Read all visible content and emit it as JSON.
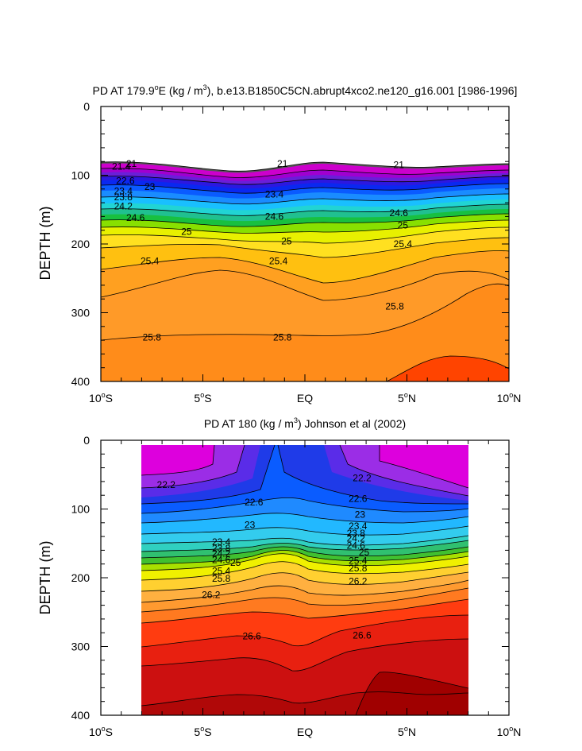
{
  "chart_data": [
    {
      "type": "heatmap",
      "subtype": "filled-contour",
      "title": "PD AT 179.9°E (kg / m³), b.e13.B1850C5CN.abrupt4xco2.ne120_g16.001 [1986-1996]",
      "title_parts": {
        "prefix": "PD AT 179.9",
        "deg": "o",
        "mid": "E (kg / m",
        "sup": "3",
        "suffix": "), b.e13.B1850C5CN.abrupt4xco2.ne120_g16.001 [1986-1996]"
      },
      "xlabel": "",
      "ylabel": "DEPTH (m)",
      "xlim": [
        -10,
        10
      ],
      "ylim": [
        400,
        0
      ],
      "x_ticks": [
        {
          "value": -10,
          "num": "10",
          "deg": "o",
          "hem": "S"
        },
        {
          "value": -5,
          "num": "5",
          "deg": "o",
          "hem": "S"
        },
        {
          "value": 0,
          "num": "EQ",
          "deg": "",
          "hem": ""
        },
        {
          "value": 5,
          "num": "5",
          "deg": "o",
          "hem": "N"
        },
        {
          "value": 10,
          "num": "10",
          "deg": "o",
          "hem": "N"
        }
      ],
      "y_ticks": [
        "0",
        "100",
        "200",
        "300",
        "400"
      ],
      "y_tick_values": [
        0,
        100,
        200,
        300,
        400
      ],
      "data_xrange": [
        -10,
        10
      ],
      "contour_interval": 0.2,
      "density_range": [
        20.4,
        26.6
      ],
      "fill_colors": [
        "#cc00cc",
        "#a000d0",
        "#6a1fd8",
        "#2c18e0",
        "#0a28f0",
        "#0a5bff",
        "#1a8cff",
        "#19bfff",
        "#21d4d4",
        "#20c090",
        "#18c040",
        "#88e000",
        "#e8f000",
        "#ffe020",
        "#ffc010",
        "#ffa020",
        "#ff8c1a",
        "#ff4400"
      ],
      "contour_labels": [
        {
          "text": "21",
          "x": -8.5,
          "y": 83
        },
        {
          "text": "21.4",
          "x": -9.0,
          "y": 87
        },
        {
          "text": "22.6",
          "x": -8.8,
          "y": 108
        },
        {
          "text": "23",
          "x": -7.6,
          "y": 117
        },
        {
          "text": "23.4",
          "x": -8.9,
          "y": 123
        },
        {
          "text": "23.8",
          "x": -8.9,
          "y": 132
        },
        {
          "text": "24.2",
          "x": -8.9,
          "y": 145
        },
        {
          "text": "24.6",
          "x": -8.3,
          "y": 162
        },
        {
          "text": "25",
          "x": -5.8,
          "y": 182
        },
        {
          "text": "25.4",
          "x": -7.6,
          "y": 225
        },
        {
          "text": "25.4",
          "x": -1.3,
          "y": 225
        },
        {
          "text": "25",
          "x": -0.9,
          "y": 196
        },
        {
          "text": "24.6",
          "x": -1.5,
          "y": 160
        },
        {
          "text": "21",
          "x": -1.1,
          "y": 83
        },
        {
          "text": "23.4",
          "x": -1.5,
          "y": 128
        },
        {
          "text": "25.8",
          "x": -7.5,
          "y": 336
        },
        {
          "text": "25.8",
          "x": -1.1,
          "y": 336
        },
        {
          "text": "25.8",
          "x": 4.4,
          "y": 291
        },
        {
          "text": "25.4",
          "x": 4.8,
          "y": 200
        },
        {
          "text": "25",
          "x": 4.8,
          "y": 173
        },
        {
          "text": "24.6",
          "x": 4.6,
          "y": 155
        },
        {
          "text": "21",
          "x": 4.6,
          "y": 85
        }
      ]
    },
    {
      "type": "heatmap",
      "subtype": "filled-contour",
      "title": "PD AT 180 (kg / m³) Johnson et al (2002)",
      "title_parts": {
        "prefix": "PD AT 180 (kg / m",
        "sup": "3",
        "suffix": ") Johnson et al (2002)"
      },
      "xlabel": "",
      "ylabel": "DEPTH (m)",
      "xlim": [
        -10,
        10
      ],
      "ylim": [
        400,
        0
      ],
      "x_ticks": [
        {
          "value": -10,
          "num": "10",
          "deg": "o",
          "hem": "S"
        },
        {
          "value": -5,
          "num": "5",
          "deg": "o",
          "hem": "S"
        },
        {
          "value": 0,
          "num": "EQ",
          "deg": "",
          "hem": ""
        },
        {
          "value": 5,
          "num": "5",
          "deg": "o",
          "hem": "N"
        },
        {
          "value": 10,
          "num": "10",
          "deg": "o",
          "hem": "N"
        }
      ],
      "y_ticks": [
        "0",
        "100",
        "200",
        "300",
        "400"
      ],
      "y_tick_values": [
        0,
        100,
        200,
        300,
        400
      ],
      "data_xrange": [
        -8,
        8
      ],
      "contour_interval": 0.2,
      "density_range": [
        20.8,
        27.0
      ],
      "fill_colors": [
        "#dd00dd",
        "#9b2de6",
        "#5a2ce8",
        "#1f3be8",
        "#0a5cff",
        "#1f8aff",
        "#22b8ff",
        "#33ccee",
        "#30d0c0",
        "#30c070",
        "#40c030",
        "#a8e000",
        "#f0f000",
        "#ffd030",
        "#ffb040",
        "#ff9a30",
        "#ff7a20",
        "#ff3c10",
        "#e82010",
        "#cc1010",
        "#b00808"
      ],
      "contour_labels": [
        {
          "text": "22.2",
          "x": -6.8,
          "y": 65
        },
        {
          "text": "22.6",
          "x": -2.5,
          "y": 90
        },
        {
          "text": "23",
          "x": -2.7,
          "y": 123
        },
        {
          "text": "23.4",
          "x": -4.1,
          "y": 148
        },
        {
          "text": "23.8",
          "x": -4.1,
          "y": 157
        },
        {
          "text": "24.2",
          "x": -4.1,
          "y": 165
        },
        {
          "text": "24.6",
          "x": -4.1,
          "y": 174
        },
        {
          "text": "25",
          "x": -3.4,
          "y": 178
        },
        {
          "text": "25.4",
          "x": -4.1,
          "y": 190
        },
        {
          "text": "25.8",
          "x": -4.1,
          "y": 201
        },
        {
          "text": "26.2",
          "x": -4.6,
          "y": 225
        },
        {
          "text": "26.6",
          "x": -2.6,
          "y": 285
        },
        {
          "text": "22.2",
          "x": 2.8,
          "y": 55
        },
        {
          "text": "22.6",
          "x": 2.6,
          "y": 85
        },
        {
          "text": "23",
          "x": 2.7,
          "y": 108
        },
        {
          "text": "23.4",
          "x": 2.6,
          "y": 125
        },
        {
          "text": "23.8",
          "x": 2.5,
          "y": 135
        },
        {
          "text": "24.2",
          "x": 2.5,
          "y": 143
        },
        {
          "text": "24.6",
          "x": 2.5,
          "y": 153
        },
        {
          "text": "25",
          "x": 2.9,
          "y": 163
        },
        {
          "text": "25.4",
          "x": 2.6,
          "y": 175
        },
        {
          "text": "25.8",
          "x": 2.6,
          "y": 186
        },
        {
          "text": "26.2",
          "x": 2.6,
          "y": 205
        },
        {
          "text": "26.6",
          "x": 2.8,
          "y": 284
        }
      ]
    }
  ]
}
